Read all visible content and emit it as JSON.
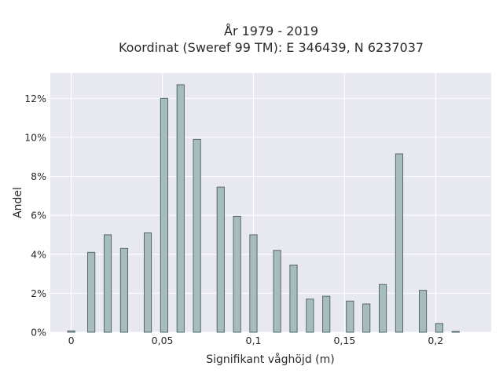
{
  "chart_data": {
    "type": "bar",
    "title": "År 1979 - 2019",
    "subtitle": "Koordinat (Sweref 99 TM): E 346439, N 6237037",
    "xlabel": "Signifikant våghöjd (m)",
    "ylabel": "Andel",
    "x": [
      0.0,
      0.011,
      0.02,
      0.029,
      0.042,
      0.051,
      0.06,
      0.069,
      0.082,
      0.091,
      0.1,
      0.113,
      0.122,
      0.131,
      0.14,
      0.153,
      0.162,
      0.171,
      0.18,
      0.193,
      0.202,
      0.211
    ],
    "values": [
      0.07,
      4.1,
      5.0,
      4.3,
      5.1,
      12.0,
      12.7,
      9.9,
      7.45,
      5.95,
      5.0,
      4.2,
      3.45,
      1.7,
      1.85,
      1.6,
      1.45,
      2.45,
      9.15,
      2.15,
      0.45,
      0.04
    ],
    "xlim": [
      -0.0115,
      0.2305
    ],
    "ylim": [
      0,
      13.3
    ],
    "xticks": [
      0,
      0.05,
      0.1,
      0.15,
      0.2
    ],
    "xtick_labels": [
      "0",
      "0,05",
      "0,1",
      "0,15",
      "0,2"
    ],
    "yticks": [
      0,
      2,
      4,
      6,
      8,
      10,
      12
    ],
    "ytick_labels": [
      "0%",
      "2%",
      "4%",
      "6%",
      "8%",
      "10%",
      "12%"
    ],
    "grid": true,
    "bar_color": "#a6bcbd",
    "bar_edge_color": "#4a5d5e",
    "plot_background": "#e8e8f0"
  }
}
